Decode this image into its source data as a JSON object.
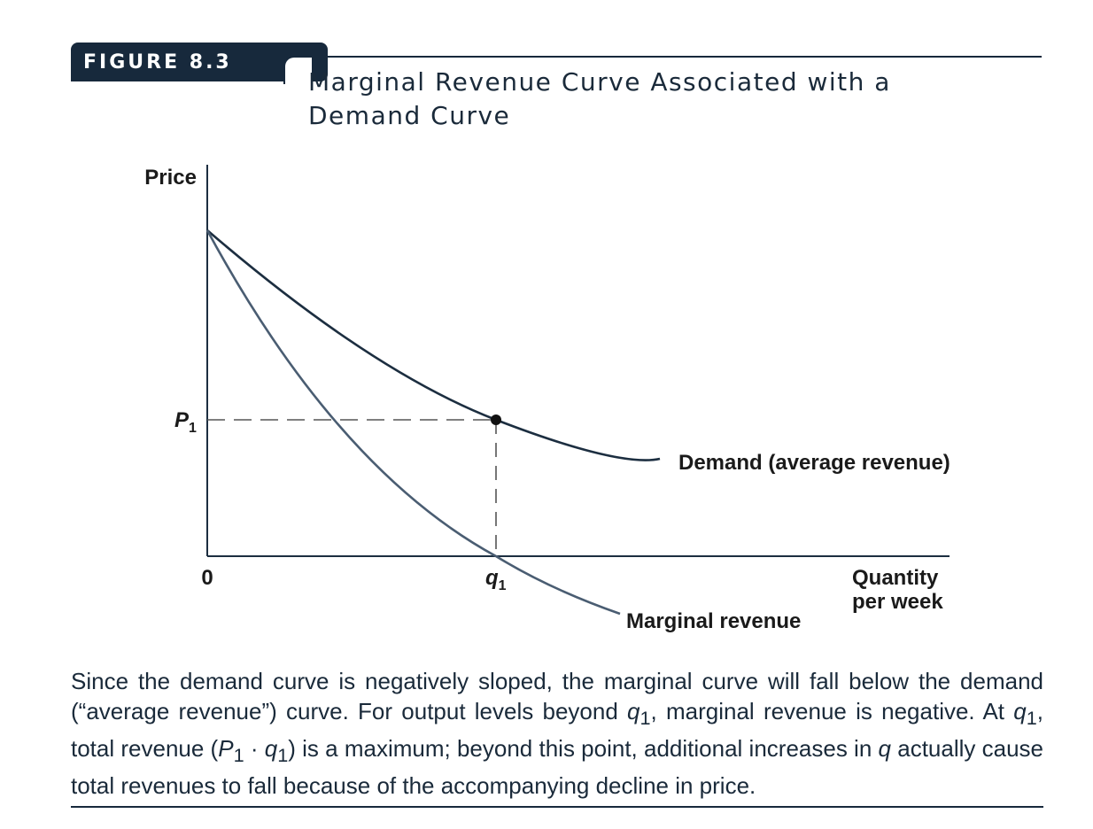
{
  "figure": {
    "label": "FIGURE 8.3",
    "title": "Marginal Revenue Curve Associated with a Demand Curve"
  },
  "chart_data": {
    "type": "line",
    "title": "Marginal Revenue Curve Associated with a Demand Curve",
    "ylabel": "Price",
    "xlabel_line1": "Quantity",
    "xlabel_line2": "per week",
    "origin_label": "0",
    "x_tick_label": "q",
    "x_tick_sub": "1",
    "y_tick_label": "P",
    "y_tick_sub": "1",
    "series": [
      {
        "name": "Demand (average revenue)",
        "color": "#1c2e40"
      },
      {
        "name": "Marginal revenue",
        "color": "#4a5d72"
      }
    ],
    "grid": false
  },
  "caption": {
    "p1": "Since the demand curve is negatively sloped, the marginal curve will fall below the demand (“average revenue”) curve. For output levels beyond ",
    "q": "q",
    "sub1": "1",
    "p2": ", marginal revenue is negative. At ",
    "p3": ", total revenue (",
    "P": "P",
    "p4": " · ",
    "p5": ") is a maximum; beyond this point, additional increases in ",
    "p6": " actually cause total revenues to fall because of the accompanying decline in price."
  }
}
